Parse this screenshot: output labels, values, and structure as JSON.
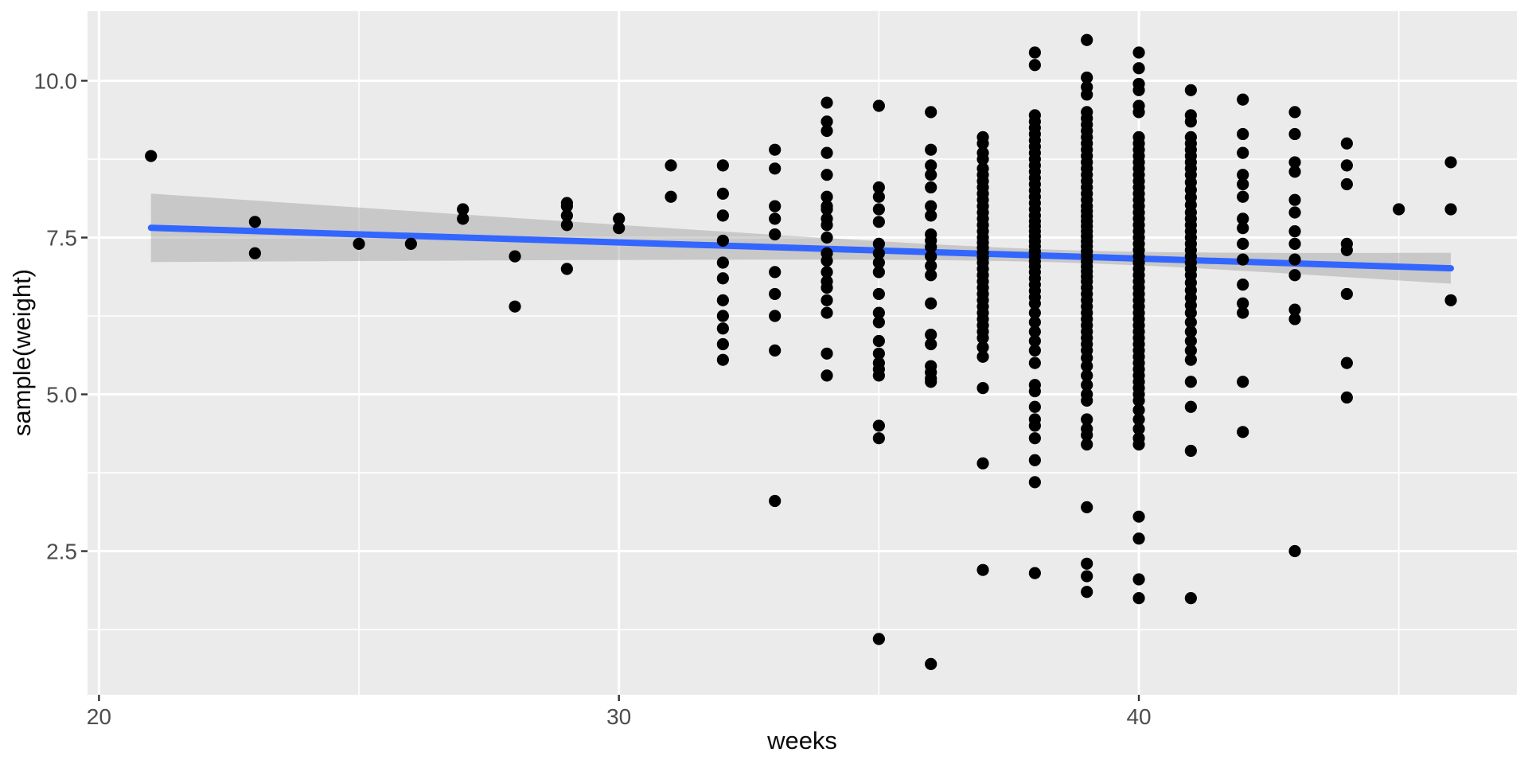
{
  "chart_data": {
    "type": "scatter",
    "title": "",
    "xlabel": "weeks",
    "ylabel": "sample(weight)",
    "legend": "none",
    "grid": "on",
    "theme": {
      "panel_bg": "#EBEBEB",
      "grid_color": "#FFFFFF",
      "point_color": "#000000",
      "smooth_line_color": "#3366FF",
      "ribbon_color": "#999999",
      "ribbon_opacity": 0.42,
      "tick_text_color": "#4D4D4D",
      "axis_title_color": "#0a0a0a",
      "tick_mark_color": "#333333"
    },
    "x_ticks": [
      20,
      30,
      40
    ],
    "x_tick_labels": [
      "20",
      "30",
      "40"
    ],
    "x_minor_ticks": [
      25,
      35,
      45
    ],
    "y_ticks": [
      10.0,
      7.5,
      5.0,
      2.5
    ],
    "y_tick_labels": [
      "10.0",
      "7.5",
      "5.0",
      "2.5"
    ],
    "y_minor_ticks": [
      8.75,
      6.25,
      3.75,
      1.25
    ],
    "xlim": [
      19.78,
      47.27
    ],
    "ylim": [
      0.21,
      11.11
    ],
    "smooth": {
      "method": "lm",
      "x_start": 21,
      "x_end": 46,
      "y_at_start": 7.655,
      "slope": -0.0258,
      "ci_center_x": 38.6,
      "ci_min_half_width": 0.1,
      "ci_spread_coef": 0.00093
    },
    "points_by_week": {
      "21": [
        8.8
      ],
      "23": [
        7.75,
        7.25
      ],
      "25": [
        7.4
      ],
      "26": [
        7.4
      ],
      "27": [
        7.95,
        7.8
      ],
      "28": [
        7.2,
        6.4
      ],
      "29": [
        8.05,
        8.0,
        7.85,
        7.7,
        7.0
      ],
      "30": [
        7.8,
        7.65
      ],
      "31": [
        8.65,
        8.15
      ],
      "32": [
        8.65,
        8.2,
        7.85,
        7.45,
        7.1,
        6.85,
        6.5,
        6.25,
        6.05,
        5.8,
        5.55
      ],
      "33": [
        8.9,
        8.6,
        8.0,
        7.8,
        7.55,
        6.95,
        6.6,
        6.25,
        5.7,
        3.3
      ],
      "34": [
        9.65,
        9.35,
        9.2,
        8.85,
        8.5,
        8.15,
        8.0,
        7.95,
        7.8,
        7.7,
        7.5,
        7.25,
        7.13,
        6.95,
        6.8,
        6.7,
        6.5,
        6.3,
        5.65,
        5.3
      ],
      "35": [
        9.6,
        8.3,
        8.15,
        7.95,
        7.75,
        7.4,
        7.25,
        7.1,
        6.95,
        6.6,
        6.3,
        6.15,
        5.85,
        5.65,
        5.5,
        5.4,
        5.3,
        4.5,
        4.3,
        1.1
      ],
      "36": [
        9.5,
        8.9,
        8.65,
        8.5,
        8.3,
        8.0,
        7.85,
        7.55,
        7.45,
        7.35,
        7.2,
        7.05,
        6.9,
        6.45,
        5.95,
        5.8,
        5.45,
        5.35,
        5.25,
        5.2,
        0.7
      ],
      "37": [
        9.1,
        9.0,
        8.85,
        8.75,
        8.6,
        8.5,
        8.4,
        8.3,
        8.2,
        8.1,
        8.0,
        7.9,
        7.8,
        7.7,
        7.6,
        7.5,
        7.42,
        7.34,
        7.26,
        7.18,
        7.1,
        7.0,
        6.9,
        6.8,
        6.7,
        6.6,
        6.5,
        6.4,
        6.3,
        6.2,
        6.1,
        6.0,
        5.9,
        5.75,
        5.6,
        5.1,
        3.9,
        2.2
      ],
      "38": [
        10.45,
        10.25,
        9.45,
        9.35,
        9.25,
        9.15,
        9.05,
        8.95,
        8.85,
        8.75,
        8.65,
        8.55,
        8.45,
        8.35,
        8.25,
        8.15,
        8.05,
        7.95,
        7.85,
        7.76,
        7.68,
        7.6,
        7.52,
        7.44,
        7.36,
        7.28,
        7.2,
        7.12,
        7.04,
        6.95,
        6.85,
        6.75,
        6.65,
        6.55,
        6.45,
        6.3,
        6.15,
        6.0,
        5.85,
        5.7,
        5.5,
        5.15,
        5.05,
        4.8,
        4.6,
        4.5,
        4.3,
        3.95,
        3.6,
        2.15
      ],
      "39": [
        10.65,
        10.05,
        9.9,
        9.78,
        9.5,
        9.4,
        9.3,
        9.2,
        9.1,
        9.0,
        8.9,
        8.8,
        8.7,
        8.6,
        8.5,
        8.4,
        8.3,
        8.2,
        8.1,
        8.0,
        7.92,
        7.84,
        7.76,
        7.68,
        7.6,
        7.52,
        7.44,
        7.36,
        7.28,
        7.2,
        7.12,
        7.04,
        6.96,
        6.88,
        6.8,
        6.7,
        6.6,
        6.5,
        6.4,
        6.3,
        6.2,
        6.1,
        6.0,
        5.9,
        5.8,
        5.7,
        5.58,
        5.45,
        5.3,
        5.15,
        5.0,
        4.9,
        4.6,
        4.45,
        4.35,
        4.2,
        3.2,
        2.3,
        2.1,
        1.85
      ],
      "40": [
        10.45,
        10.2,
        9.95,
        9.85,
        9.6,
        9.5,
        9.1,
        9.0,
        8.9,
        8.8,
        8.7,
        8.6,
        8.5,
        8.4,
        8.3,
        8.2,
        8.1,
        8.0,
        7.9,
        7.8,
        7.7,
        7.6,
        7.5,
        7.4,
        7.3,
        7.2,
        7.1,
        7.0,
        6.9,
        6.8,
        6.7,
        6.6,
        6.5,
        6.4,
        6.3,
        6.2,
        6.1,
        6.0,
        5.9,
        5.8,
        5.7,
        5.6,
        5.5,
        5.4,
        5.3,
        5.2,
        5.1,
        5.0,
        4.9,
        4.75,
        4.6,
        4.45,
        4.3,
        4.2,
        3.05,
        2.7,
        2.05,
        1.75
      ],
      "41": [
        9.85,
        9.45,
        9.35,
        9.1,
        9.0,
        8.9,
        8.8,
        8.7,
        8.6,
        8.5,
        8.38,
        8.26,
        8.14,
        8.02,
        7.9,
        7.8,
        7.7,
        7.6,
        7.5,
        7.4,
        7.3,
        7.2,
        7.1,
        7.0,
        6.9,
        6.78,
        6.66,
        6.54,
        6.42,
        6.3,
        6.15,
        6.0,
        5.85,
        5.7,
        5.55,
        5.2,
        4.8,
        4.1,
        1.75
      ],
      "42": [
        9.7,
        9.15,
        8.85,
        8.5,
        8.35,
        8.15,
        7.8,
        7.65,
        7.4,
        7.15,
        6.75,
        6.45,
        6.3,
        5.2,
        4.4
      ],
      "43": [
        9.5,
        9.15,
        8.7,
        8.55,
        8.1,
        7.9,
        7.6,
        7.4,
        7.15,
        6.9,
        6.35,
        6.2,
        2.5
      ],
      "44": [
        9.0,
        8.65,
        8.35,
        7.4,
        7.3,
        6.6,
        5.5,
        4.95
      ],
      "45": [
        7.95
      ],
      "46": [
        8.7,
        7.95,
        6.5
      ]
    }
  }
}
